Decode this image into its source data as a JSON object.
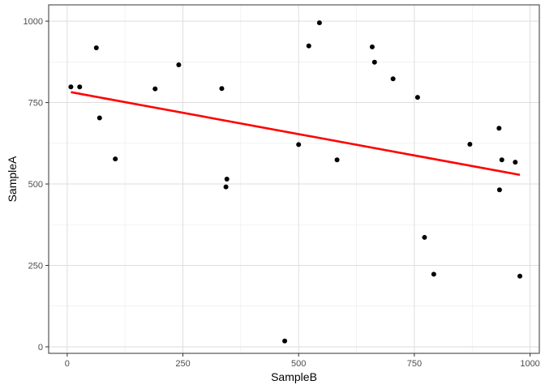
{
  "chart_data": {
    "type": "scatter",
    "title": "",
    "xlabel": "SampleB",
    "ylabel": "SampleA",
    "xlim": [
      -40,
      1020
    ],
    "ylim": [
      -20,
      1050
    ],
    "x_ticks": [
      0,
      250,
      500,
      750,
      1000
    ],
    "x_tick_labels": [
      "0",
      "250",
      "500",
      "750",
      "1000"
    ],
    "y_ticks": [
      0,
      250,
      500,
      750,
      1000
    ],
    "y_tick_labels": [
      "0",
      "250",
      "500",
      "750",
      "1000"
    ],
    "grid": true,
    "points": [
      {
        "x": 8,
        "y": 798
      },
      {
        "x": 27,
        "y": 798
      },
      {
        "x": 63,
        "y": 918
      },
      {
        "x": 70,
        "y": 703
      },
      {
        "x": 104,
        "y": 577
      },
      {
        "x": 190,
        "y": 792
      },
      {
        "x": 241,
        "y": 866
      },
      {
        "x": 334,
        "y": 793
      },
      {
        "x": 343,
        "y": 491
      },
      {
        "x": 345,
        "y": 515
      },
      {
        "x": 470,
        "y": 18
      },
      {
        "x": 500,
        "y": 621
      },
      {
        "x": 522,
        "y": 924
      },
      {
        "x": 545,
        "y": 995
      },
      {
        "x": 583,
        "y": 574
      },
      {
        "x": 659,
        "y": 921
      },
      {
        "x": 664,
        "y": 874
      },
      {
        "x": 704,
        "y": 823
      },
      {
        "x": 757,
        "y": 766
      },
      {
        "x": 772,
        "y": 336
      },
      {
        "x": 792,
        "y": 223
      },
      {
        "x": 870,
        "y": 622
      },
      {
        "x": 933,
        "y": 671
      },
      {
        "x": 934,
        "y": 482
      },
      {
        "x": 939,
        "y": 574
      },
      {
        "x": 968,
        "y": 567
      },
      {
        "x": 978,
        "y": 217
      }
    ],
    "trend_line": {
      "x": [
        8,
        978
      ],
      "y": [
        782,
        528
      ],
      "color": "#ff0000"
    },
    "point_color": "#000000"
  }
}
